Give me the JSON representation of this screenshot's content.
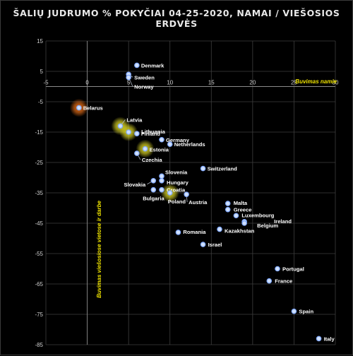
{
  "chart_data": {
    "type": "scatter",
    "title": "ŠALIŲ JUDRUMO % POKYČIAI 04-25-2020, NAMAI / VIEŠOSIOS ERDVĖS",
    "xlabel": "",
    "ylabel": "",
    "xlim": [
      -5,
      30
    ],
    "ylim": [
      -85,
      15
    ],
    "x_ticks": [
      -5,
      0,
      5,
      10,
      15,
      20,
      25,
      30
    ],
    "y_ticks": [
      15,
      5,
      -5,
      -15,
      -25,
      -35,
      -45,
      -55,
      -65,
      -75,
      -85
    ],
    "grid": true,
    "annotations": {
      "x_axis_meaning": "Buvimas namie",
      "y_axis_meaning": "Buvimas viešosiose vietose ir darbe"
    },
    "colors": {
      "point_fill": "#cfe0ff",
      "point_stroke": "#7fa8ff",
      "highlight_yellow": "#f0ea2a",
      "highlight_orange": "#ff7a1a",
      "annotation": "#f2e600"
    },
    "points": [
      {
        "label": "Denmark",
        "x": 6,
        "y": 7,
        "highlight": "none"
      },
      {
        "label": "Sweden",
        "x": 5,
        "y": 4,
        "highlight": "none"
      },
      {
        "label": "Norway",
        "x": 5,
        "y": 3,
        "highlight": "none"
      },
      {
        "label": "Belarus",
        "x": -1,
        "y": -7,
        "highlight": "orange"
      },
      {
        "label": "Latvia",
        "x": 4,
        "y": -13,
        "highlight": "yellow"
      },
      {
        "label": "Lithuania",
        "x": 5,
        "y": -15,
        "highlight": "yellow"
      },
      {
        "label": "Finland",
        "x": 6,
        "y": -15.5,
        "highlight": "none"
      },
      {
        "label": "Germany",
        "x": 9,
        "y": -17.5,
        "highlight": "none"
      },
      {
        "label": "Netherlands",
        "x": 10,
        "y": -19,
        "highlight": "none"
      },
      {
        "label": "Estonia",
        "x": 7,
        "y": -20.5,
        "highlight": "yellow"
      },
      {
        "label": "Czechia",
        "x": 6,
        "y": -22,
        "highlight": "none"
      },
      {
        "label": "Switzerland",
        "x": 14,
        "y": -27,
        "highlight": "none"
      },
      {
        "label": "Slovenia",
        "x": 9,
        "y": -29.5,
        "highlight": "none"
      },
      {
        "label": "Hungary",
        "x": 9,
        "y": -31,
        "highlight": "none"
      },
      {
        "label": "Slovakia",
        "x": 8,
        "y": -31,
        "highlight": "none"
      },
      {
        "label": "Croatia",
        "x": 9,
        "y": -34,
        "highlight": "none"
      },
      {
        "label": "Bulgaria",
        "x": 8,
        "y": -34,
        "highlight": "none"
      },
      {
        "label": "Poland",
        "x": 10,
        "y": -35,
        "highlight": "yellow"
      },
      {
        "label": "Austria",
        "x": 12,
        "y": -35.5,
        "highlight": "none"
      },
      {
        "label": "Malta",
        "x": 17,
        "y": -38.5,
        "highlight": "none"
      },
      {
        "label": "Greece",
        "x": 17,
        "y": -40.5,
        "highlight": "none"
      },
      {
        "label": "Luxembourg",
        "x": 18,
        "y": -42.5,
        "highlight": "none"
      },
      {
        "label": "Ireland",
        "x": 19,
        "y": -44.5,
        "highlight": "none"
      },
      {
        "label": "Belgium",
        "x": 19,
        "y": -45,
        "highlight": "none"
      },
      {
        "label": "Kazakhstan",
        "x": 16,
        "y": -47,
        "highlight": "none"
      },
      {
        "label": "Romania",
        "x": 11,
        "y": -48,
        "highlight": "none"
      },
      {
        "label": "Israel",
        "x": 14,
        "y": -52,
        "highlight": "none"
      },
      {
        "label": "Portugal",
        "x": 23,
        "y": -60,
        "highlight": "none"
      },
      {
        "label": "France",
        "x": 22,
        "y": -64,
        "highlight": "none"
      },
      {
        "label": "Spain",
        "x": 25,
        "y": -74,
        "highlight": "none"
      },
      {
        "label": "Italy",
        "x": 28,
        "y": -83,
        "highlight": "none"
      }
    ]
  }
}
